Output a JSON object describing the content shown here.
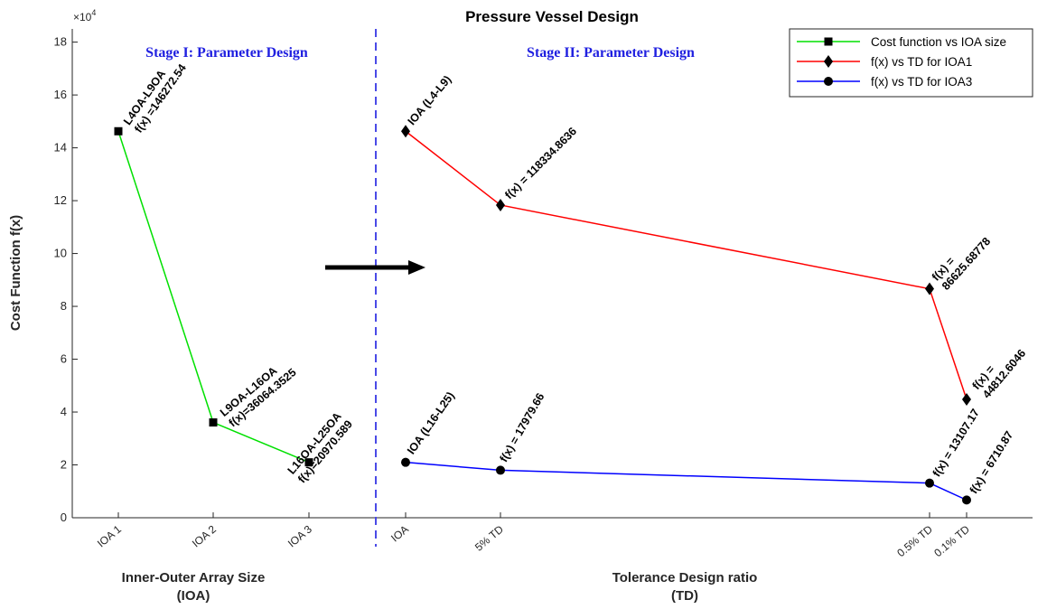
{
  "chart_data": {
    "type": "line",
    "title": "Pressure Vessel Design",
    "ylabel": "Cost Function f(x)",
    "y_exponent_label": "×10",
    "y_exponent_power": "4",
    "ylim": [
      0,
      18.5
    ],
    "y_scale": 10000,
    "yticks": [
      0,
      2,
      4,
      6,
      8,
      10,
      12,
      14,
      16,
      18
    ],
    "grid": false,
    "legend_position": "top-right",
    "stage_labels": [
      "Stage I: Parameter Design",
      "Stage II: Parameter Design"
    ],
    "x_axis_labels": [
      {
        "line1": "Inner-Outer Array Size",
        "line2": "(IOA)"
      },
      {
        "line1": "Tolerance Design ratio",
        "line2": "(TD)"
      }
    ],
    "xticks": [
      "IOA 1",
      "IOA 2",
      "IOA 3",
      "IOA",
      "5% TD",
      "0.5% TD",
      "0.1% TD"
    ],
    "series": [
      {
        "name": "Cost function vs IOA size",
        "color": "#00e000",
        "marker": "square",
        "x": [
          "IOA 1",
          "IOA 2",
          "IOA 3"
        ],
        "values": [
          146272.54,
          36064.3525,
          20970.589
        ],
        "annotations": [
          [
            "L4OA-L9OA",
            "f(x) =146272.54"
          ],
          [
            "L9OA-L16OA",
            "f(x)=36064.3525"
          ],
          [
            "L16OA-L25OA",
            "f(x)=20970.589"
          ]
        ]
      },
      {
        "name": "f(x) vs TD for IOA1",
        "color": "#ff0000",
        "marker": "diamond",
        "x": [
          "IOA",
          "5% TD",
          "0.5% TD",
          "0.1% TD"
        ],
        "values": [
          146272.54,
          118334.8636,
          86625.68778,
          44812.6046
        ],
        "annotations": [
          [
            "IOA (L4-L9)"
          ],
          [
            "f(x) = 118334.8636"
          ],
          [
            "f(x) =",
            "86625.68778"
          ],
          [
            "f(x) =",
            "44812.6046"
          ]
        ]
      },
      {
        "name": "f(x) vs TD for IOA3",
        "color": "#0000ff",
        "marker": "circle",
        "x": [
          "IOA",
          "5% TD",
          "0.5% TD",
          "0.1% TD"
        ],
        "values": [
          20970.589,
          17979.66,
          13107.17,
          6710.87
        ],
        "annotations": [
          [
            "IOA (L16-L25)"
          ],
          [
            "f(x) = 17979.66"
          ],
          [
            "f(x) = 13107.17"
          ],
          [
            "f(x) = 6710.87"
          ]
        ]
      }
    ],
    "colors": {
      "stage_label": "#2020e0",
      "divider": "#4a4ae6",
      "arrow": "#000000",
      "axis": "#262626"
    }
  }
}
